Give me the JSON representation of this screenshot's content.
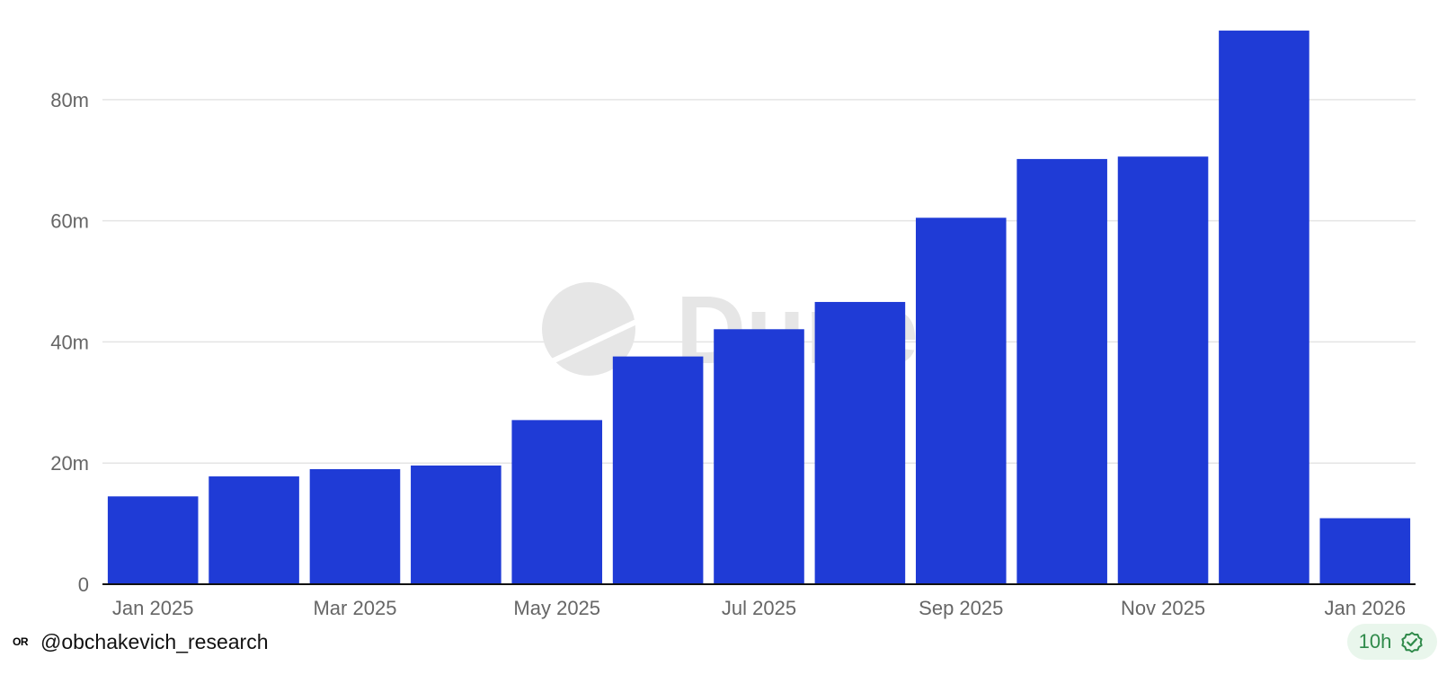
{
  "chart_data": {
    "type": "bar",
    "x": [
      "2025-01",
      "2025-02",
      "2025-03",
      "2025-04",
      "2025-05",
      "2025-06",
      "2025-07",
      "2025-08",
      "2025-09",
      "2025-10",
      "2025-11",
      "2025-12",
      "2026-01"
    ],
    "tick_labels": [
      "Jan 2025",
      "",
      "Mar 2025",
      "",
      "May 2025",
      "",
      "Jul 2025",
      "",
      "Sep 2025",
      "",
      "Nov 2025",
      "",
      "Jan 2026"
    ],
    "values": [
      14.5,
      17.8,
      19.0,
      19.6,
      27.1,
      37.6,
      42.1,
      46.6,
      60.5,
      70.2,
      70.6,
      91.4,
      10.9
    ],
    "ylim": [
      0,
      92
    ],
    "yticks": [
      0,
      20,
      40,
      60,
      80
    ],
    "ytick_labels": [
      "0",
      "20m",
      "40m",
      "60m",
      "80m"
    ],
    "grid": true,
    "bar_color": "#1f3bd6",
    "watermark": "Dune"
  },
  "footer": {
    "logo_text": "OR",
    "handle": "@obchakevich_research",
    "freshness": "10h",
    "freshness_icon": "verified-check-icon",
    "badge_bg": "#e9f6ec",
    "badge_color": "#2f8a4a"
  }
}
